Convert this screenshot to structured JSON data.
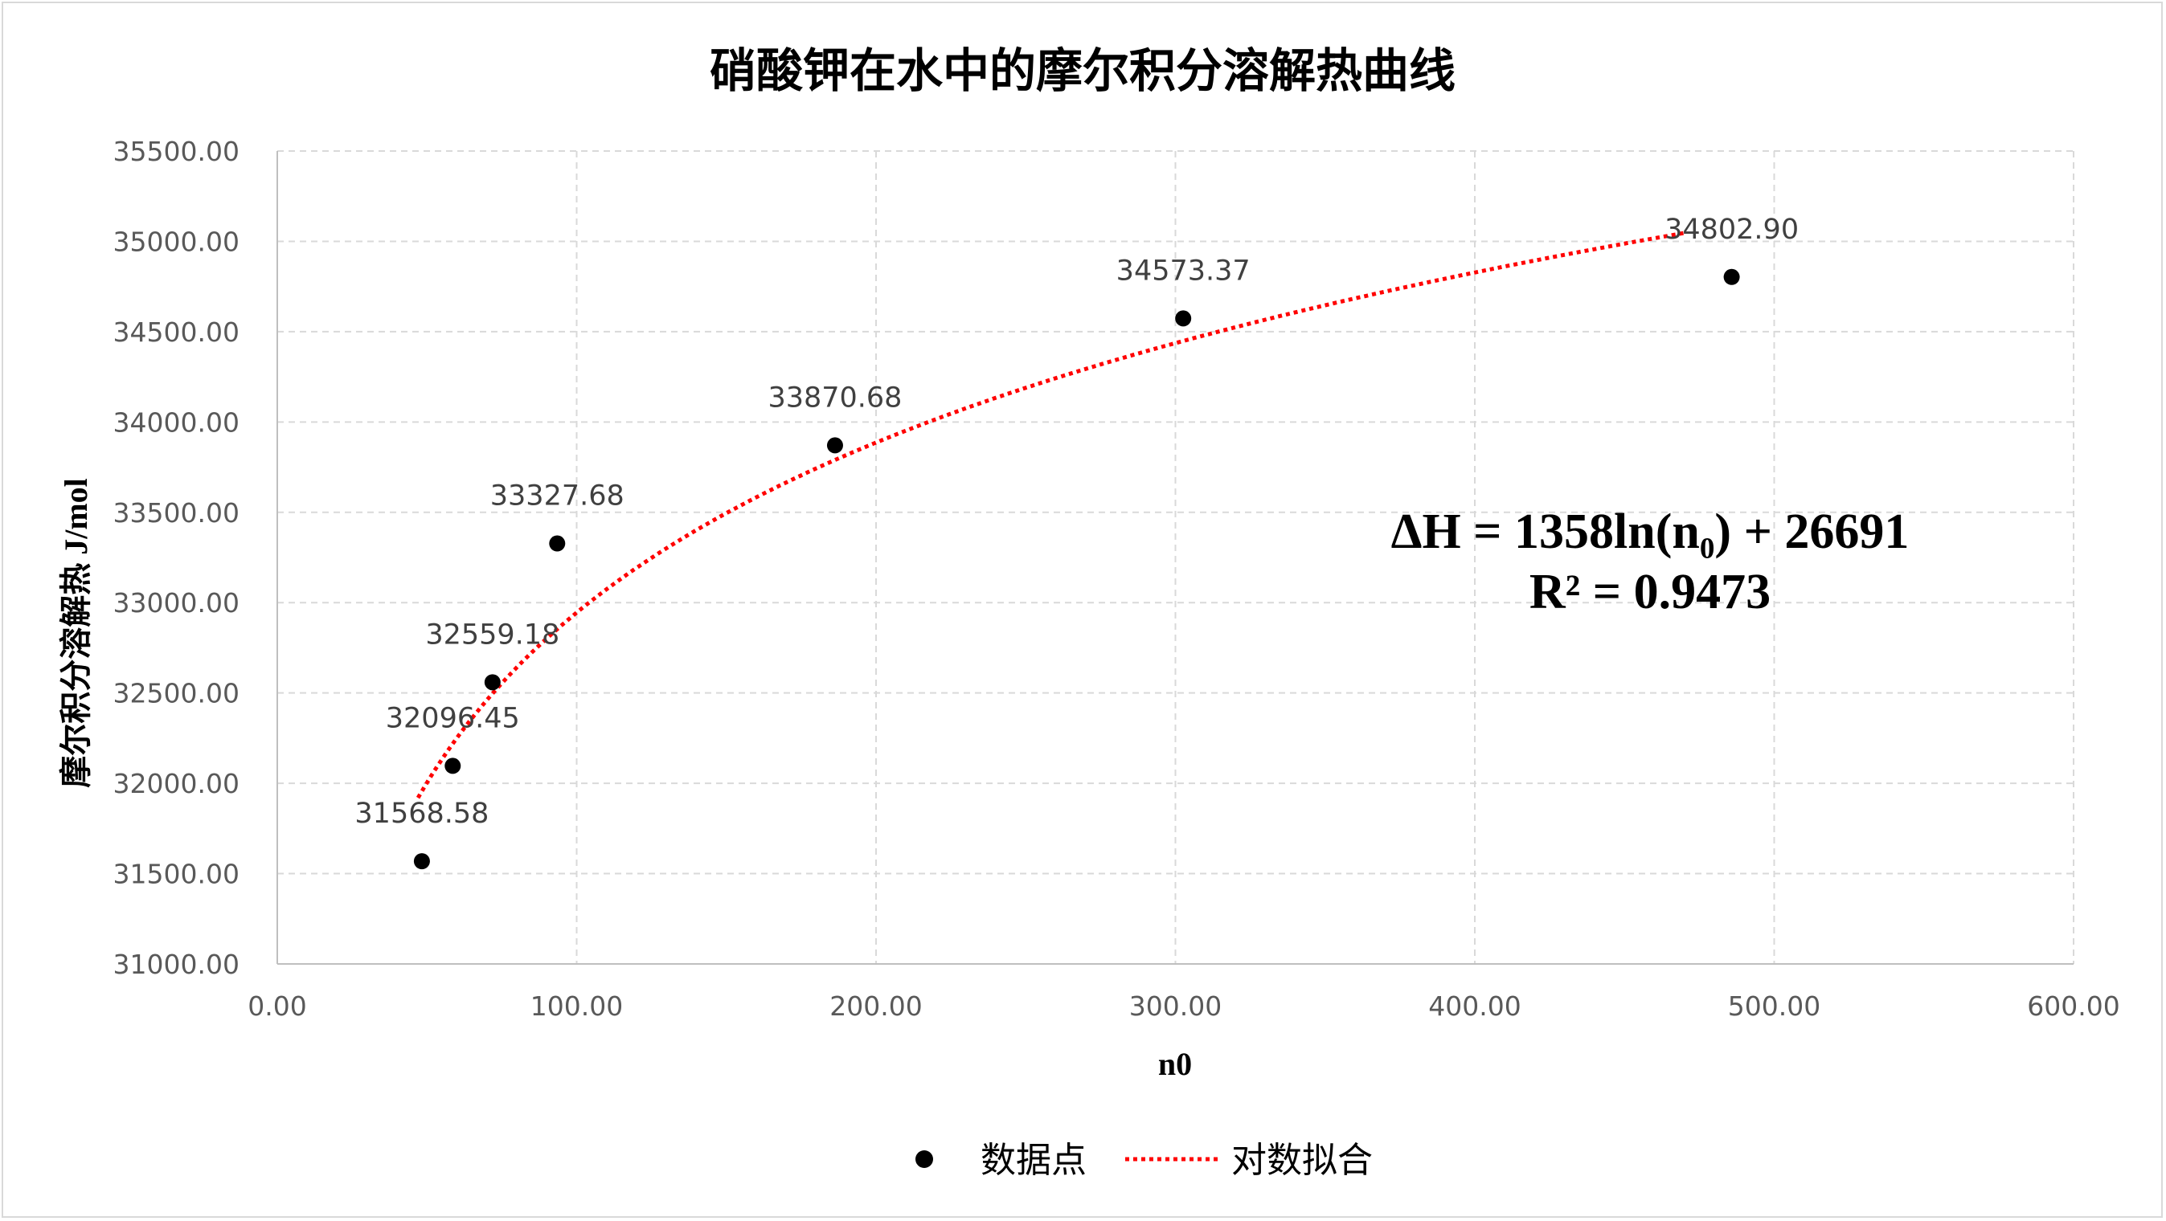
{
  "chart_data": {
    "type": "scatter",
    "title": "硝酸钾在水中的摩尔积分溶解热曲线",
    "xlabel": "n0",
    "ylabel": "摩尔积分溶解热 J/mol",
    "xlim": [
      0,
      600
    ],
    "ylim": [
      31000,
      35500
    ],
    "x_ticks": [
      "0.00",
      "100.00",
      "200.00",
      "300.00",
      "400.00",
      "500.00",
      "600.00"
    ],
    "y_ticks": [
      "31000.00",
      "31500.00",
      "32000.00",
      "32500.00",
      "33000.00",
      "33500.00",
      "34000.00",
      "34500.00",
      "35000.00",
      "35500.00"
    ],
    "grid": true,
    "legend_position": "bottom",
    "series": [
      {
        "name": "数据点",
        "color": "#000000",
        "points": [
          {
            "x": 48.3,
            "y": 31568.58,
            "label": "31568.58"
          },
          {
            "x": 58.6,
            "y": 32096.45,
            "label": "32096.45"
          },
          {
            "x": 71.9,
            "y": 32559.18,
            "label": "32559.18"
          },
          {
            "x": 93.5,
            "y": 33327.68,
            "label": "33327.68"
          },
          {
            "x": 186.3,
            "y": 33870.68,
            "label": "33870.68"
          },
          {
            "x": 302.6,
            "y": 34573.37,
            "label": "34573.37"
          },
          {
            "x": 485.8,
            "y": 34802.9,
            "label": "34802.90"
          }
        ]
      },
      {
        "name": "对数拟合",
        "color": "#ff0000",
        "fit": {
          "type": "log",
          "a": 1358,
          "b": 26691,
          "x_from": 47,
          "x_to": 470
        }
      }
    ],
    "annotation": {
      "equation": "ΔH = 1358ln(n₀) + 26691",
      "r2": "R² = 0.9473"
    }
  }
}
